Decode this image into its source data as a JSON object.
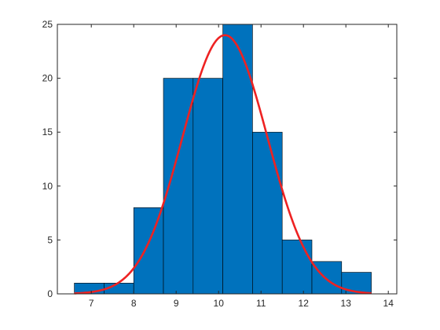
{
  "chart_data": {
    "type": "bar",
    "subtype": "histogram-with-normal-fit",
    "title": "",
    "xlabel": "",
    "ylabel": "",
    "xlim": [
      6.2,
      14.2
    ],
    "ylim": [
      0,
      25
    ],
    "x_ticks": [
      "7",
      "8",
      "9",
      "10",
      "11",
      "12",
      "13",
      "14"
    ],
    "y_ticks": [
      "0",
      "5",
      "10",
      "15",
      "20",
      "25"
    ],
    "bins": [
      {
        "start": 6.6,
        "end": 7.3,
        "count": 1
      },
      {
        "start": 7.3,
        "end": 8.0,
        "count": 1
      },
      {
        "start": 8.0,
        "end": 8.7,
        "count": 8
      },
      {
        "start": 8.7,
        "end": 9.4,
        "count": 20
      },
      {
        "start": 9.4,
        "end": 10.1,
        "count": 20
      },
      {
        "start": 10.1,
        "end": 10.8,
        "count": 25
      },
      {
        "start": 10.8,
        "end": 11.5,
        "count": 15
      },
      {
        "start": 11.5,
        "end": 12.2,
        "count": 5
      },
      {
        "start": 12.2,
        "end": 12.9,
        "count": 3
      },
      {
        "start": 12.9,
        "end": 13.6,
        "count": 2
      }
    ],
    "fit": {
      "type": "normal",
      "mean": 10.15,
      "peak": 24,
      "sigma": 1.0,
      "x_range": [
        6.6,
        13.6
      ]
    },
    "bar_color": "#0072BD",
    "bar_edge_color": "#000000",
    "fit_color": "#EE2222",
    "grid": false,
    "legend": "none"
  }
}
